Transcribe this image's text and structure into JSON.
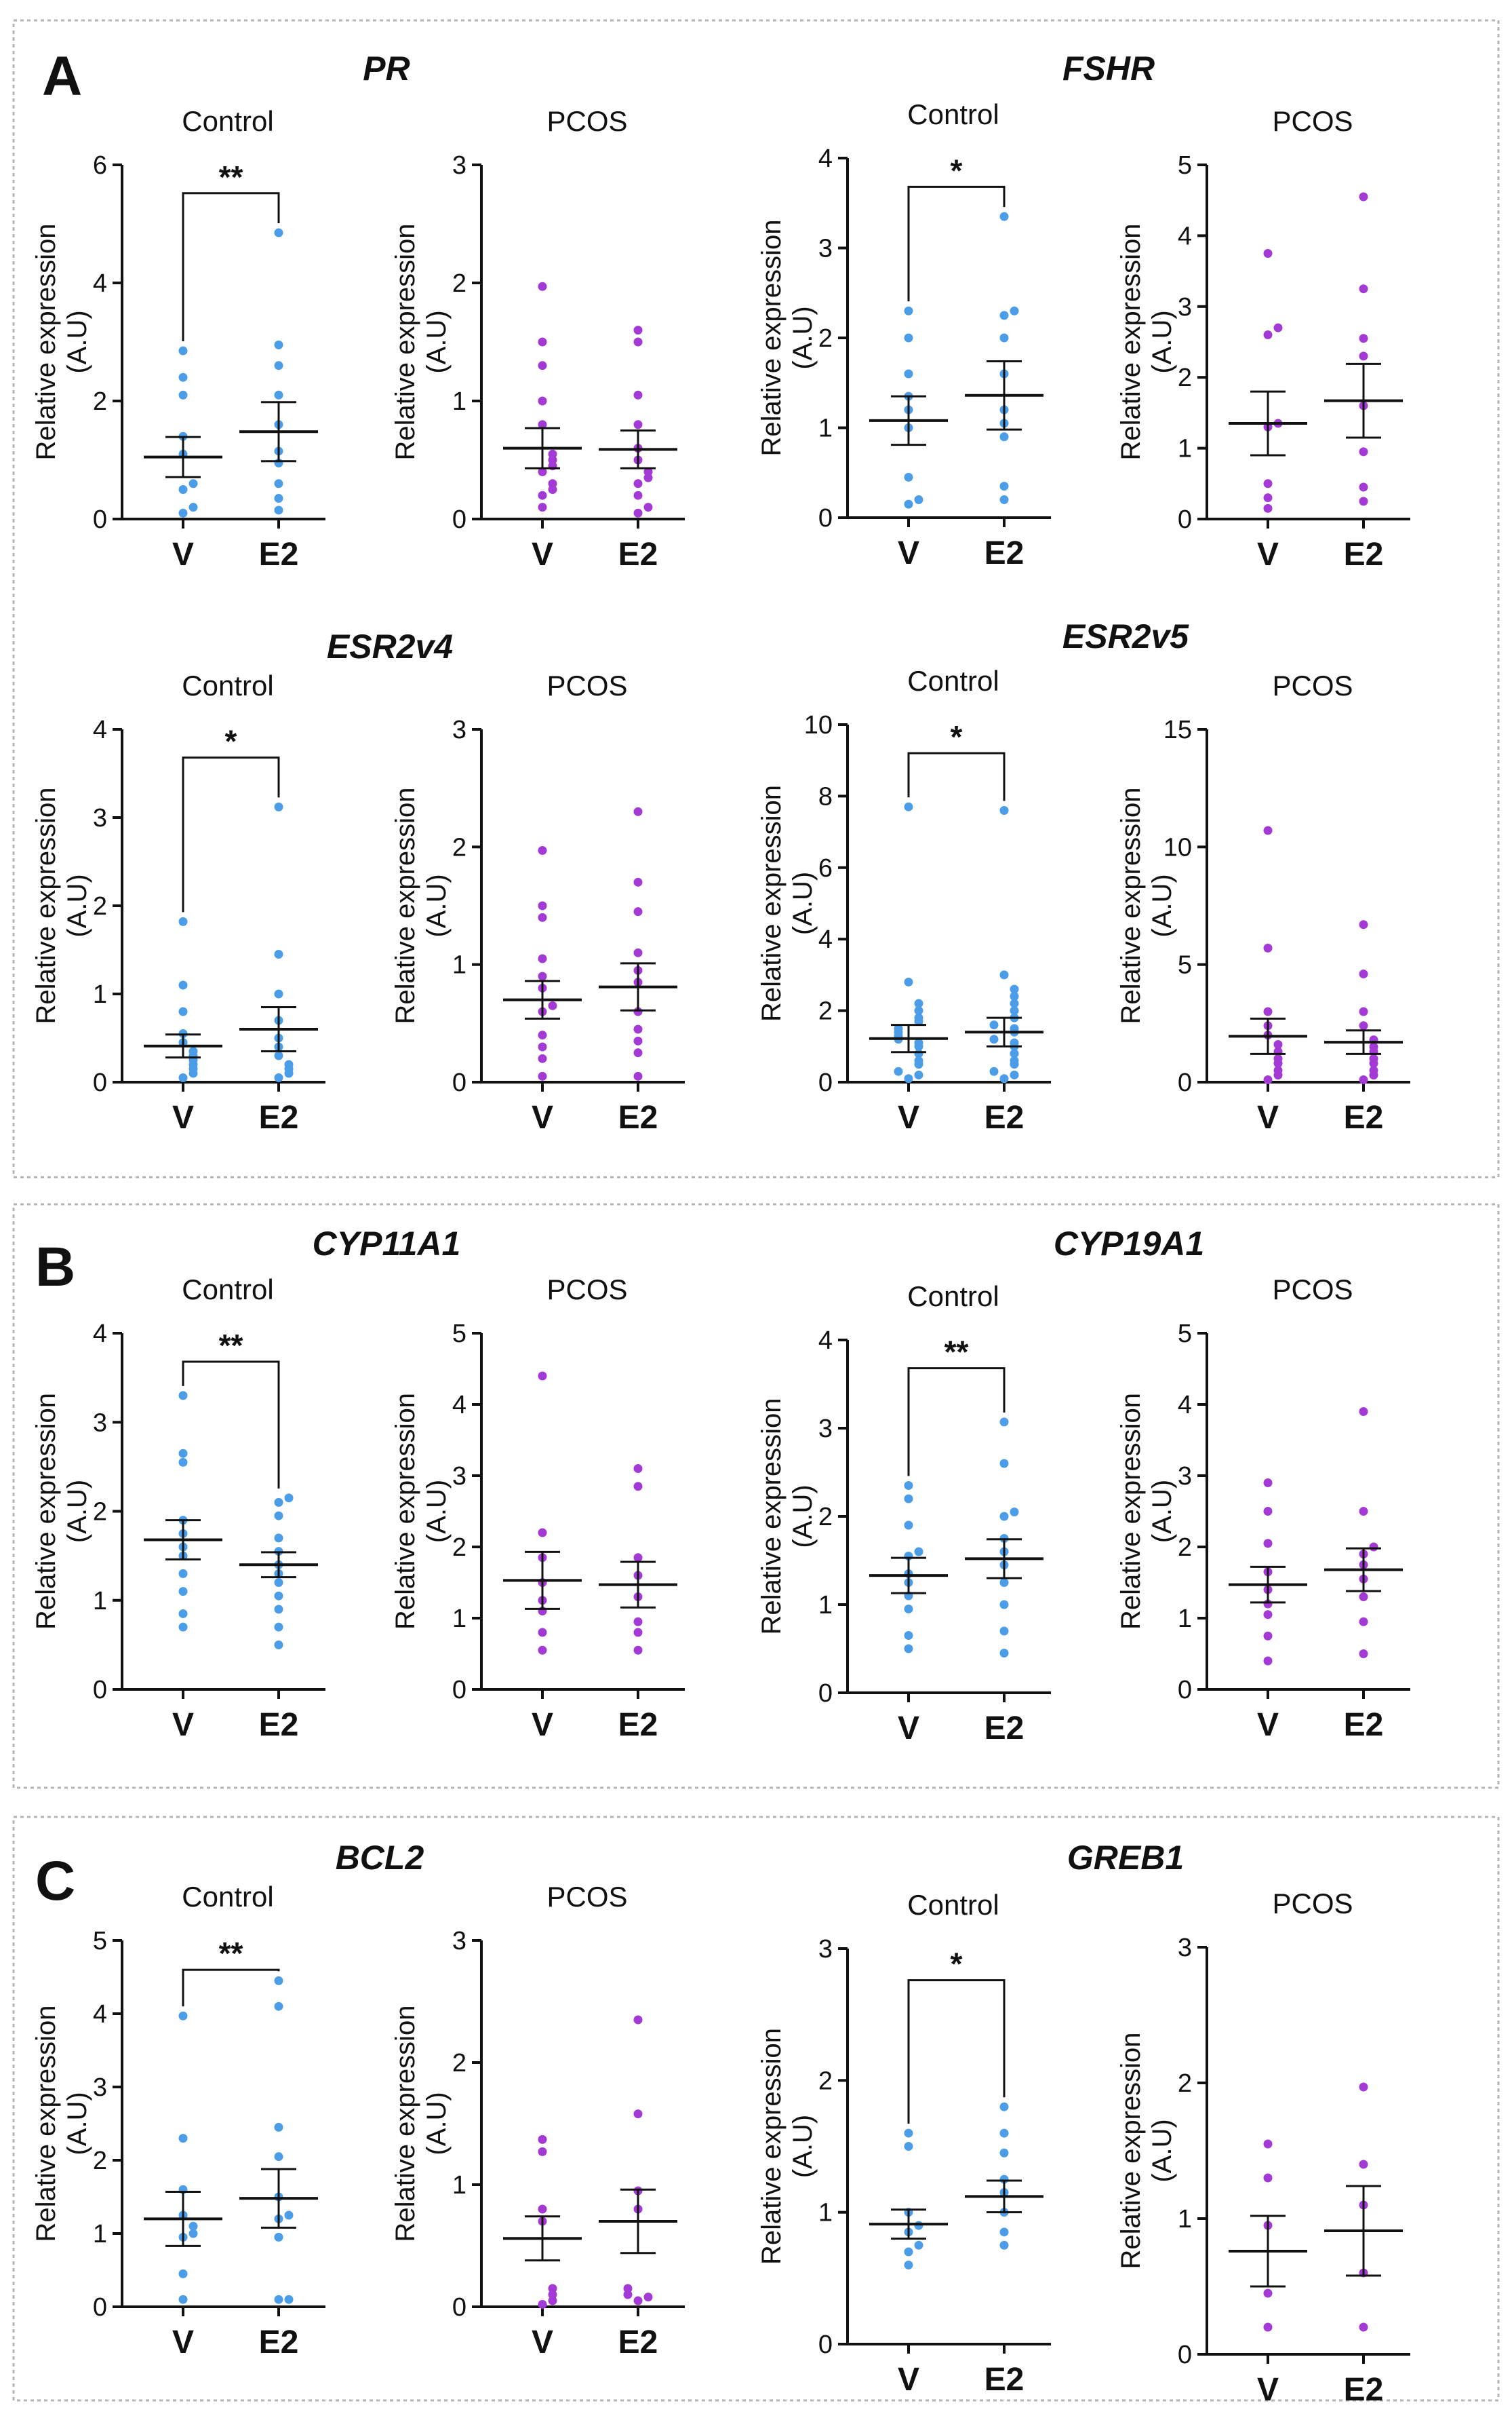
{
  "colors": {
    "control": "#4a9de6",
    "pcos": "#a43ad6",
    "axis": "#111111",
    "panel_border": "#b4b4b4"
  },
  "common": {
    "ylabel_line1": "Relative expression",
    "ylabel_line2": "(A.U)",
    "x_labels": [
      "V",
      "E2"
    ]
  },
  "panels": [
    {
      "letter": "A"
    },
    {
      "letter": "B"
    },
    {
      "letter": "C"
    }
  ],
  "genes": [
    "PR",
    "FSHR",
    "ESR2v4",
    "ESR2v5",
    "CYP11A1",
    "CYP19A1",
    "BCL2",
    "GREB1"
  ],
  "chart_data": [
    {
      "type": "scatter",
      "gene": "PR",
      "title": "Control",
      "ylim": [
        0,
        6
      ],
      "ticks": [
        0,
        2,
        4,
        6
      ],
      "sig": "**",
      "series": [
        {
          "name": "V",
          "points": [
            0.1,
            0.2,
            0.5,
            0.6,
            1.1,
            1.4,
            2.1,
            2.4,
            2.85
          ],
          "mean": 1.05,
          "sem": 0.34
        },
        {
          "name": "E2",
          "points": [
            0.15,
            0.35,
            0.6,
            0.95,
            1.15,
            1.6,
            2.1,
            2.6,
            2.95,
            4.85
          ],
          "mean": 1.48,
          "sem": 0.5
        }
      ]
    },
    {
      "type": "scatter",
      "gene": "PR",
      "title": "PCOS",
      "ylim": [
        0,
        3
      ],
      "ticks": [
        0,
        1,
        2,
        3
      ],
      "sig": "",
      "series": [
        {
          "name": "V",
          "points": [
            0.1,
            0.2,
            0.25,
            0.3,
            0.4,
            0.45,
            0.5,
            0.55,
            0.8,
            1.0,
            1.3,
            1.5,
            1.97
          ],
          "mean": 0.6,
          "sem": 0.17
        },
        {
          "name": "E2",
          "points": [
            0.05,
            0.1,
            0.2,
            0.3,
            0.35,
            0.4,
            0.5,
            0.6,
            0.8,
            1.05,
            1.5,
            1.6
          ],
          "mean": 0.59,
          "sem": 0.16
        }
      ]
    },
    {
      "type": "scatter",
      "gene": "FSHR",
      "title": "Control",
      "ylim": [
        0,
        4
      ],
      "ticks": [
        0,
        1,
        2,
        3,
        4
      ],
      "sig": "*",
      "series": [
        {
          "name": "V",
          "points": [
            0.15,
            0.2,
            0.45,
            1.0,
            1.2,
            1.35,
            1.6,
            2.0,
            2.3
          ],
          "mean": 1.08,
          "sem": 0.27
        },
        {
          "name": "E2",
          "points": [
            0.2,
            0.35,
            0.9,
            1.05,
            1.2,
            1.6,
            2.0,
            2.25,
            2.3,
            3.35
          ],
          "mean": 1.36,
          "sem": 0.38
        }
      ]
    },
    {
      "type": "scatter",
      "gene": "FSHR",
      "title": "PCOS",
      "ylim": [
        0,
        5
      ],
      "ticks": [
        0,
        1,
        2,
        3,
        4,
        5
      ],
      "sig": "",
      "series": [
        {
          "name": "V",
          "points": [
            0.15,
            0.3,
            0.5,
            1.3,
            1.35,
            2.6,
            2.7,
            3.75
          ],
          "mean": 1.35,
          "sem": 0.45
        },
        {
          "name": "E2",
          "points": [
            0.25,
            0.45,
            0.95,
            1.6,
            2.3,
            2.55,
            3.25,
            4.55
          ],
          "mean": 1.67,
          "sem": 0.52
        }
      ]
    },
    {
      "type": "scatter",
      "gene": "ESR2v4",
      "title": "Control",
      "ylim": [
        0,
        4
      ],
      "ticks": [
        0,
        1,
        2,
        3,
        4
      ],
      "sig": "*",
      "series": [
        {
          "name": "V",
          "points": [
            0.05,
            0.1,
            0.15,
            0.2,
            0.25,
            0.3,
            0.35,
            0.45,
            0.55,
            0.8,
            1.1,
            1.82
          ],
          "mean": 0.41,
          "sem": 0.13
        },
        {
          "name": "E2",
          "points": [
            0.05,
            0.1,
            0.15,
            0.2,
            0.3,
            0.4,
            0.5,
            0.7,
            1.0,
            1.45,
            3.12
          ],
          "mean": 0.6,
          "sem": 0.25
        }
      ]
    },
    {
      "type": "scatter",
      "gene": "ESR2v4",
      "title": "PCOS",
      "ylim": [
        0,
        3
      ],
      "ticks": [
        0,
        1,
        2,
        3
      ],
      "sig": "",
      "series": [
        {
          "name": "V",
          "points": [
            0.05,
            0.2,
            0.3,
            0.4,
            0.6,
            0.65,
            0.8,
            0.9,
            1.05,
            1.4,
            1.5,
            1.97
          ],
          "mean": 0.7,
          "sem": 0.16
        },
        {
          "name": "E2",
          "points": [
            0.05,
            0.25,
            0.35,
            0.45,
            0.6,
            0.85,
            0.95,
            1.1,
            1.45,
            1.7,
            2.3
          ],
          "mean": 0.81,
          "sem": 0.2
        }
      ]
    },
    {
      "type": "scatter",
      "gene": "ESR2v5",
      "title": "Control",
      "ylim": [
        0,
        10
      ],
      "ticks": [
        0,
        2,
        4,
        6,
        8,
        10
      ],
      "sig": "*",
      "series": [
        {
          "name": "V",
          "points": [
            0.1,
            0.2,
            0.3,
            0.5,
            0.6,
            0.8,
            1.0,
            1.1,
            1.2,
            1.3,
            1.4,
            1.5,
            1.7,
            1.8,
            2.0,
            2.2,
            2.8,
            7.7
          ],
          "mean": 1.22,
          "sem": 0.38
        },
        {
          "name": "E2",
          "points": [
            0.1,
            0.2,
            0.3,
            0.5,
            0.6,
            0.8,
            1.0,
            1.1,
            1.2,
            1.4,
            1.5,
            1.6,
            1.8,
            2.0,
            2.2,
            2.4,
            2.6,
            3.0,
            7.6
          ],
          "mean": 1.4,
          "sem": 0.4
        }
      ]
    },
    {
      "type": "scatter",
      "gene": "ESR2v5",
      "title": "PCOS",
      "ylim": [
        0,
        15
      ],
      "ticks": [
        0,
        5,
        10,
        15
      ],
      "sig": "",
      "series": [
        {
          "name": "V",
          "points": [
            0.1,
            0.3,
            0.5,
            0.8,
            1.0,
            1.3,
            1.6,
            2.0,
            2.4,
            3.0,
            5.7,
            10.7
          ],
          "mean": 1.95,
          "sem": 0.75
        },
        {
          "name": "E2",
          "points": [
            0.1,
            0.3,
            0.5,
            0.8,
            1.0,
            1.3,
            1.5,
            1.8,
            2.4,
            3.0,
            4.6,
            6.7
          ],
          "mean": 1.7,
          "sem": 0.5
        }
      ]
    },
    {
      "type": "scatter",
      "gene": "CYP11A1",
      "title": "Control",
      "ylim": [
        0,
        4
      ],
      "ticks": [
        0,
        1,
        2,
        3,
        4
      ],
      "sig": "**",
      "series": [
        {
          "name": "V",
          "points": [
            0.7,
            0.85,
            1.1,
            1.3,
            1.5,
            1.6,
            1.75,
            1.9,
            2.55,
            2.65,
            3.3
          ],
          "mean": 1.68,
          "sem": 0.22
        },
        {
          "name": "E2",
          "points": [
            0.5,
            0.7,
            0.9,
            1.05,
            1.2,
            1.3,
            1.4,
            1.55,
            1.7,
            1.95,
            2.1,
            2.15
          ],
          "mean": 1.4,
          "sem": 0.14
        }
      ]
    },
    {
      "type": "scatter",
      "gene": "CYP11A1",
      "title": "PCOS",
      "ylim": [
        0,
        5
      ],
      "ticks": [
        0,
        1,
        2,
        3,
        4,
        5
      ],
      "sig": "",
      "series": [
        {
          "name": "V",
          "points": [
            0.55,
            0.8,
            1.1,
            1.25,
            1.5,
            1.85,
            2.2,
            4.4
          ],
          "mean": 1.53,
          "sem": 0.4
        },
        {
          "name": "E2",
          "points": [
            0.55,
            0.8,
            0.95,
            1.3,
            1.6,
            1.85,
            2.85,
            3.1
          ],
          "mean": 1.47,
          "sem": 0.32
        }
      ]
    },
    {
      "type": "scatter",
      "gene": "CYP19A1",
      "title": "Control",
      "ylim": [
        0,
        4
      ],
      "ticks": [
        0,
        1,
        2,
        3,
        4
      ],
      "sig": "**",
      "series": [
        {
          "name": "V",
          "points": [
            0.5,
            0.65,
            0.95,
            1.1,
            1.25,
            1.35,
            1.55,
            1.6,
            1.9,
            2.2,
            2.35
          ],
          "mean": 1.33,
          "sem": 0.2
        },
        {
          "name": "E2",
          "points": [
            0.45,
            0.7,
            1.0,
            1.25,
            1.45,
            1.6,
            1.75,
            2.0,
            2.05,
            2.6,
            3.07
          ],
          "mean": 1.52,
          "sem": 0.22
        }
      ]
    },
    {
      "type": "scatter",
      "gene": "CYP19A1",
      "title": "PCOS",
      "ylim": [
        0,
        5
      ],
      "ticks": [
        0,
        1,
        2,
        3,
        4,
        5
      ],
      "sig": "",
      "series": [
        {
          "name": "V",
          "points": [
            0.4,
            0.75,
            1.05,
            1.2,
            1.4,
            1.65,
            2.05,
            2.5,
            2.9
          ],
          "mean": 1.47,
          "sem": 0.25
        },
        {
          "name": "E2",
          "points": [
            0.5,
            0.95,
            1.3,
            1.55,
            1.75,
            1.9,
            2.0,
            2.5,
            3.9
          ],
          "mean": 1.68,
          "sem": 0.3
        }
      ]
    },
    {
      "type": "scatter",
      "gene": "BCL2",
      "title": "Control",
      "ylim": [
        0,
        5
      ],
      "ticks": [
        0,
        1,
        2,
        3,
        4,
        5
      ],
      "sig": "**",
      "series": [
        {
          "name": "V",
          "points": [
            0.1,
            0.45,
            0.95,
            1.0,
            1.1,
            1.25,
            1.6,
            2.3,
            3.97
          ],
          "mean": 1.2,
          "sem": 0.37
        },
        {
          "name": "E2",
          "points": [
            0.1,
            0.1,
            0.95,
            1.2,
            1.25,
            1.5,
            2.05,
            2.45,
            4.1,
            4.45
          ],
          "mean": 1.48,
          "sem": 0.4
        }
      ]
    },
    {
      "type": "scatter",
      "gene": "BCL2",
      "title": "PCOS",
      "ylim": [
        0,
        3
      ],
      "ticks": [
        0,
        1,
        2,
        3
      ],
      "sig": "",
      "series": [
        {
          "name": "V",
          "points": [
            0.02,
            0.05,
            0.1,
            0.15,
            0.7,
            0.8,
            1.27,
            1.37
          ],
          "mean": 0.56,
          "sem": 0.18
        },
        {
          "name": "E2",
          "points": [
            0.05,
            0.08,
            0.1,
            0.15,
            0.8,
            0.95,
            1.58,
            2.35
          ],
          "mean": 0.7,
          "sem": 0.26
        }
      ]
    },
    {
      "type": "scatter",
      "gene": "GREB1",
      "title": "Control",
      "ylim": [
        0,
        3
      ],
      "ticks": [
        0,
        1,
        2,
        3
      ],
      "sig": "*",
      "series": [
        {
          "name": "V",
          "points": [
            0.6,
            0.7,
            0.75,
            0.85,
            0.9,
            1.0,
            1.5,
            1.6
          ],
          "mean": 0.91,
          "sem": 0.11
        },
        {
          "name": "E2",
          "points": [
            0.75,
            0.85,
            1.0,
            1.15,
            1.25,
            1.45,
            1.6,
            1.8
          ],
          "mean": 1.12,
          "sem": 0.12
        }
      ]
    },
    {
      "type": "scatter",
      "gene": "GREB1",
      "title": "PCOS",
      "ylim": [
        0,
        3
      ],
      "ticks": [
        0,
        1,
        2,
        3
      ],
      "sig": "",
      "series": [
        {
          "name": "V",
          "points": [
            0.2,
            0.45,
            0.95,
            1.3,
            1.55
          ],
          "mean": 0.76,
          "sem": 0.26
        },
        {
          "name": "E2",
          "points": [
            0.2,
            0.6,
            1.1,
            1.4,
            1.97
          ],
          "mean": 0.91,
          "sem": 0.33
        }
      ]
    }
  ]
}
